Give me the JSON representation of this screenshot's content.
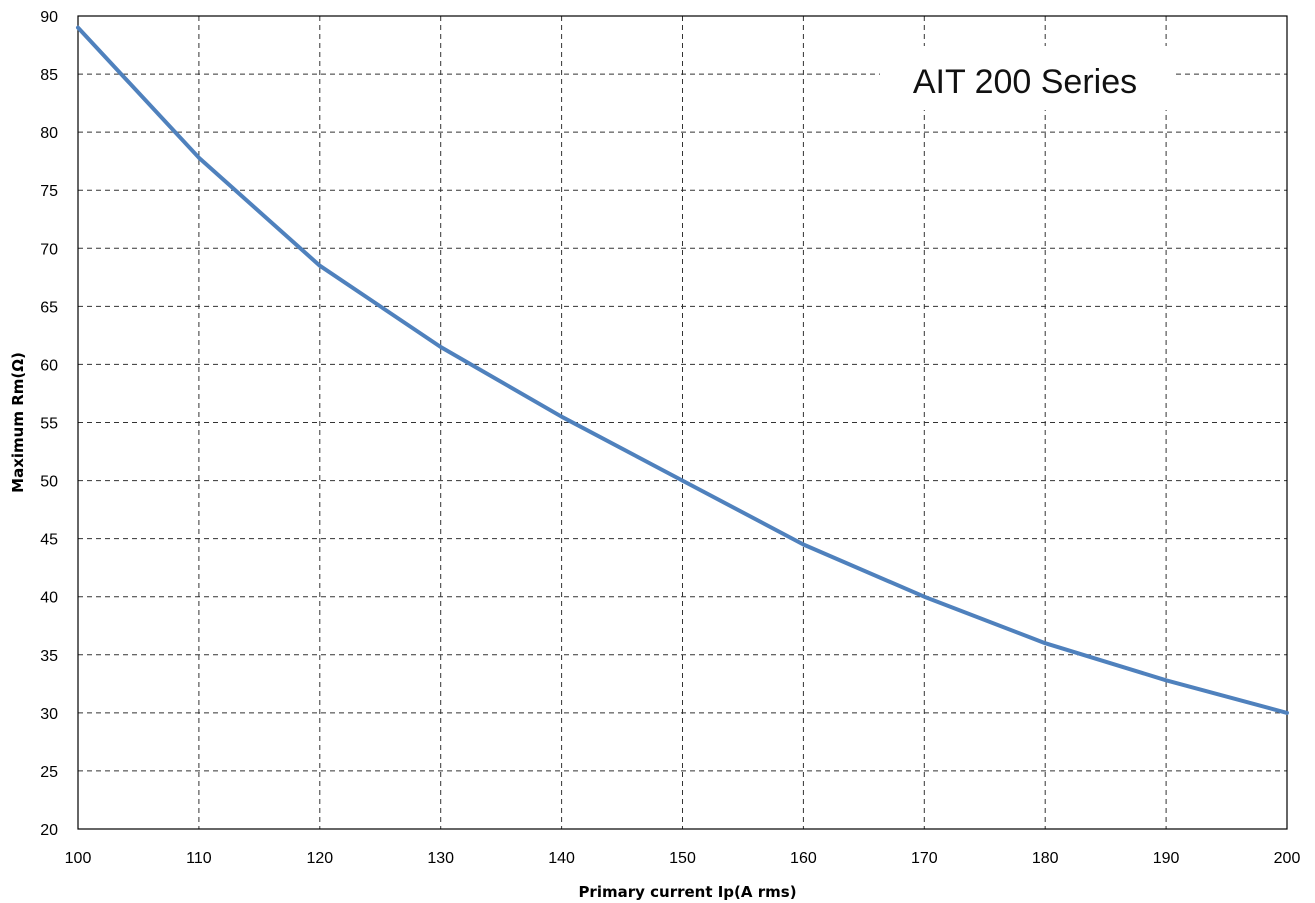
{
  "chart_data": {
    "type": "line",
    "title": "",
    "annotation": "AIT 200 Series",
    "xlabel": "Primary current Ip(A rms)",
    "ylabel": "Maximum Rm(Ω)",
    "xlim": [
      100,
      200
    ],
    "ylim": [
      20,
      90
    ],
    "xticks": [
      "100",
      "110",
      "120",
      "130",
      "140",
      "150",
      "160",
      "170",
      "180",
      "190",
      "200"
    ],
    "yticks": [
      "20",
      "25",
      "30",
      "35",
      "40",
      "45",
      "50",
      "55",
      "60",
      "65",
      "70",
      "75",
      "80",
      "85",
      "90"
    ],
    "grid": true,
    "legend": "none",
    "series": [
      {
        "color": "#4F81BD",
        "x": [
          100,
          110,
          120,
          130,
          140,
          150,
          160,
          170,
          180,
          190,
          200
        ],
        "y": [
          89,
          77.8,
          68.5,
          61.5,
          55.5,
          50,
          44.5,
          40,
          36,
          32.8,
          30
        ]
      }
    ]
  }
}
